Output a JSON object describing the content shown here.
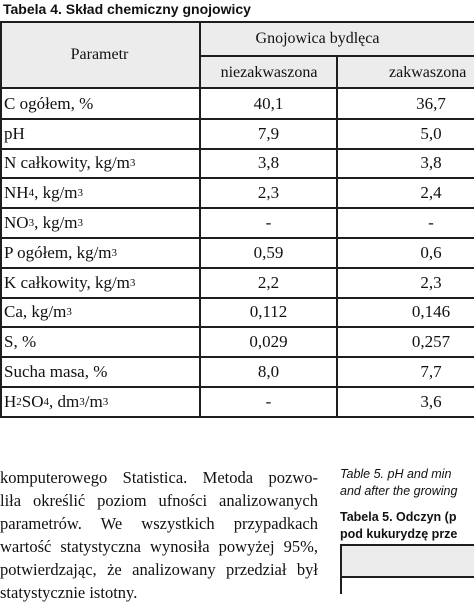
{
  "caption": "Tabela 4. Skład chemiczny gnojowicy",
  "table": {
    "param_header": "Parametr",
    "group_header": "Gnojowica bydlęca",
    "columns": [
      "niezakwaszona",
      "zakwaszona"
    ],
    "rows": [
      {
        "param": "C ogółem, %",
        "v1": "40,1",
        "v2": "36,7"
      },
      {
        "param": "pH",
        "v1": "7,9",
        "v2": "5,0"
      },
      {
        "param_pre": "N całkowity, kg/m",
        "param_sup": "3",
        "v1": "3,8",
        "v2": "3,8"
      },
      {
        "param_pre": "NH",
        "param_sub": "4",
        "param_post": ", kg/m",
        "param_sup": "3",
        "v1": "2,3",
        "v2": "2,4"
      },
      {
        "param_pre": "NO",
        "param_sub": "3",
        "param_post": ", kg/m",
        "param_sup": "3",
        "v1": "-",
        "v2": "-"
      },
      {
        "param_pre": "P ogółem, kg/m",
        "param_sup": "3",
        "v1": "0,59",
        "v2": "0,6"
      },
      {
        "param_pre": "K całkowity, kg/m",
        "param_sup": "3",
        "v1": "2,2",
        "v2": "2,3"
      },
      {
        "param_pre": "Ca, kg/m",
        "param_sup": "3",
        "v1": "0,112",
        "v2": "0,146"
      },
      {
        "param": "S, %",
        "v1": "0,029",
        "v2": "0,257"
      },
      {
        "param": "Sucha masa, %",
        "v1": "8,0",
        "v2": "7,7"
      },
      {
        "param_pre": "H",
        "param_sub": "2",
        "param_mid": "SO",
        "param_sub2": "4",
        "param_post": ", dm",
        "param_sup": "3",
        "param_post2": "/m",
        "param_sup2": "3",
        "v1": "-",
        "v2": "3,6"
      }
    ]
  },
  "paragraph_lines": [
    "komputerowego Statistica. Metoda pozwo-",
    "liła określić poziom ufności analizowanych",
    "parametrów. We wszystkich przypadkach",
    "wartość statystyczna wynosiła powyżej 95%,",
    "potwierdzając, że analizowany przedział był",
    "statystycznie istotny."
  ],
  "table5": {
    "english_lines": [
      "Table 5. pH and min",
      "and after the growing"
    ],
    "polish_lines": [
      "Tabela 5. Odczyn (p",
      "pod kukurydzę prze"
    ]
  },
  "colors": {
    "header_bg": "#ececec",
    "rule": "#1e1e1e"
  }
}
